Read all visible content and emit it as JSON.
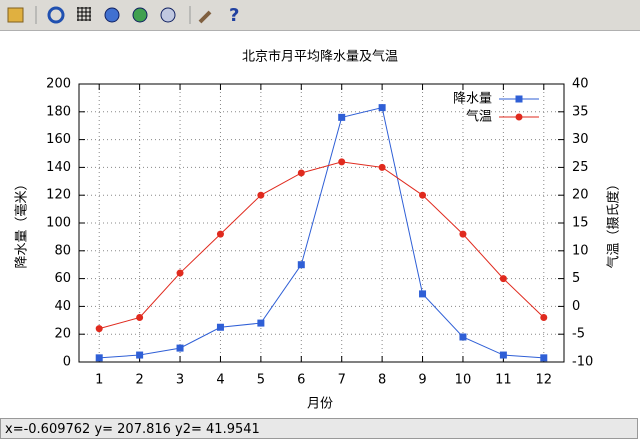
{
  "chart_data": {
    "type": "line",
    "title": "北京市月平均降水量及气温",
    "xlabel": "月份",
    "ylabel": "降水量（毫米）",
    "y2label": "气温（摄氏度）",
    "x": [
      1,
      2,
      3,
      4,
      5,
      6,
      7,
      8,
      9,
      10,
      11,
      12
    ],
    "xlim": [
      0.5,
      12.5
    ],
    "xticks": [
      1,
      2,
      3,
      4,
      5,
      6,
      7,
      8,
      9,
      10,
      11,
      12
    ],
    "ylim": [
      0,
      200
    ],
    "yticks": [
      0,
      20,
      40,
      60,
      80,
      100,
      120,
      140,
      160,
      180,
      200
    ],
    "y2lim": [
      -10,
      40
    ],
    "y2ticks": [
      -10,
      -5,
      0,
      5,
      10,
      15,
      20,
      25,
      30,
      35,
      40
    ],
    "grid": true,
    "legend": "top right",
    "series": [
      {
        "name": "降水量",
        "color": "#2f5fd6",
        "marker": "square",
        "values": [
          3,
          5,
          10,
          25,
          28,
          70,
          176,
          183,
          49,
          18,
          5,
          3
        ]
      },
      {
        "name": "气温",
        "color": "#e02a1e",
        "marker": "circle",
        "axis": "y2",
        "values": [
          -4,
          -2,
          6,
          13,
          20,
          24,
          26,
          25,
          20,
          13,
          5,
          -2
        ]
      }
    ]
  },
  "status_bar": "x=-0.609762 y= 207.816 y2= 41.9541"
}
